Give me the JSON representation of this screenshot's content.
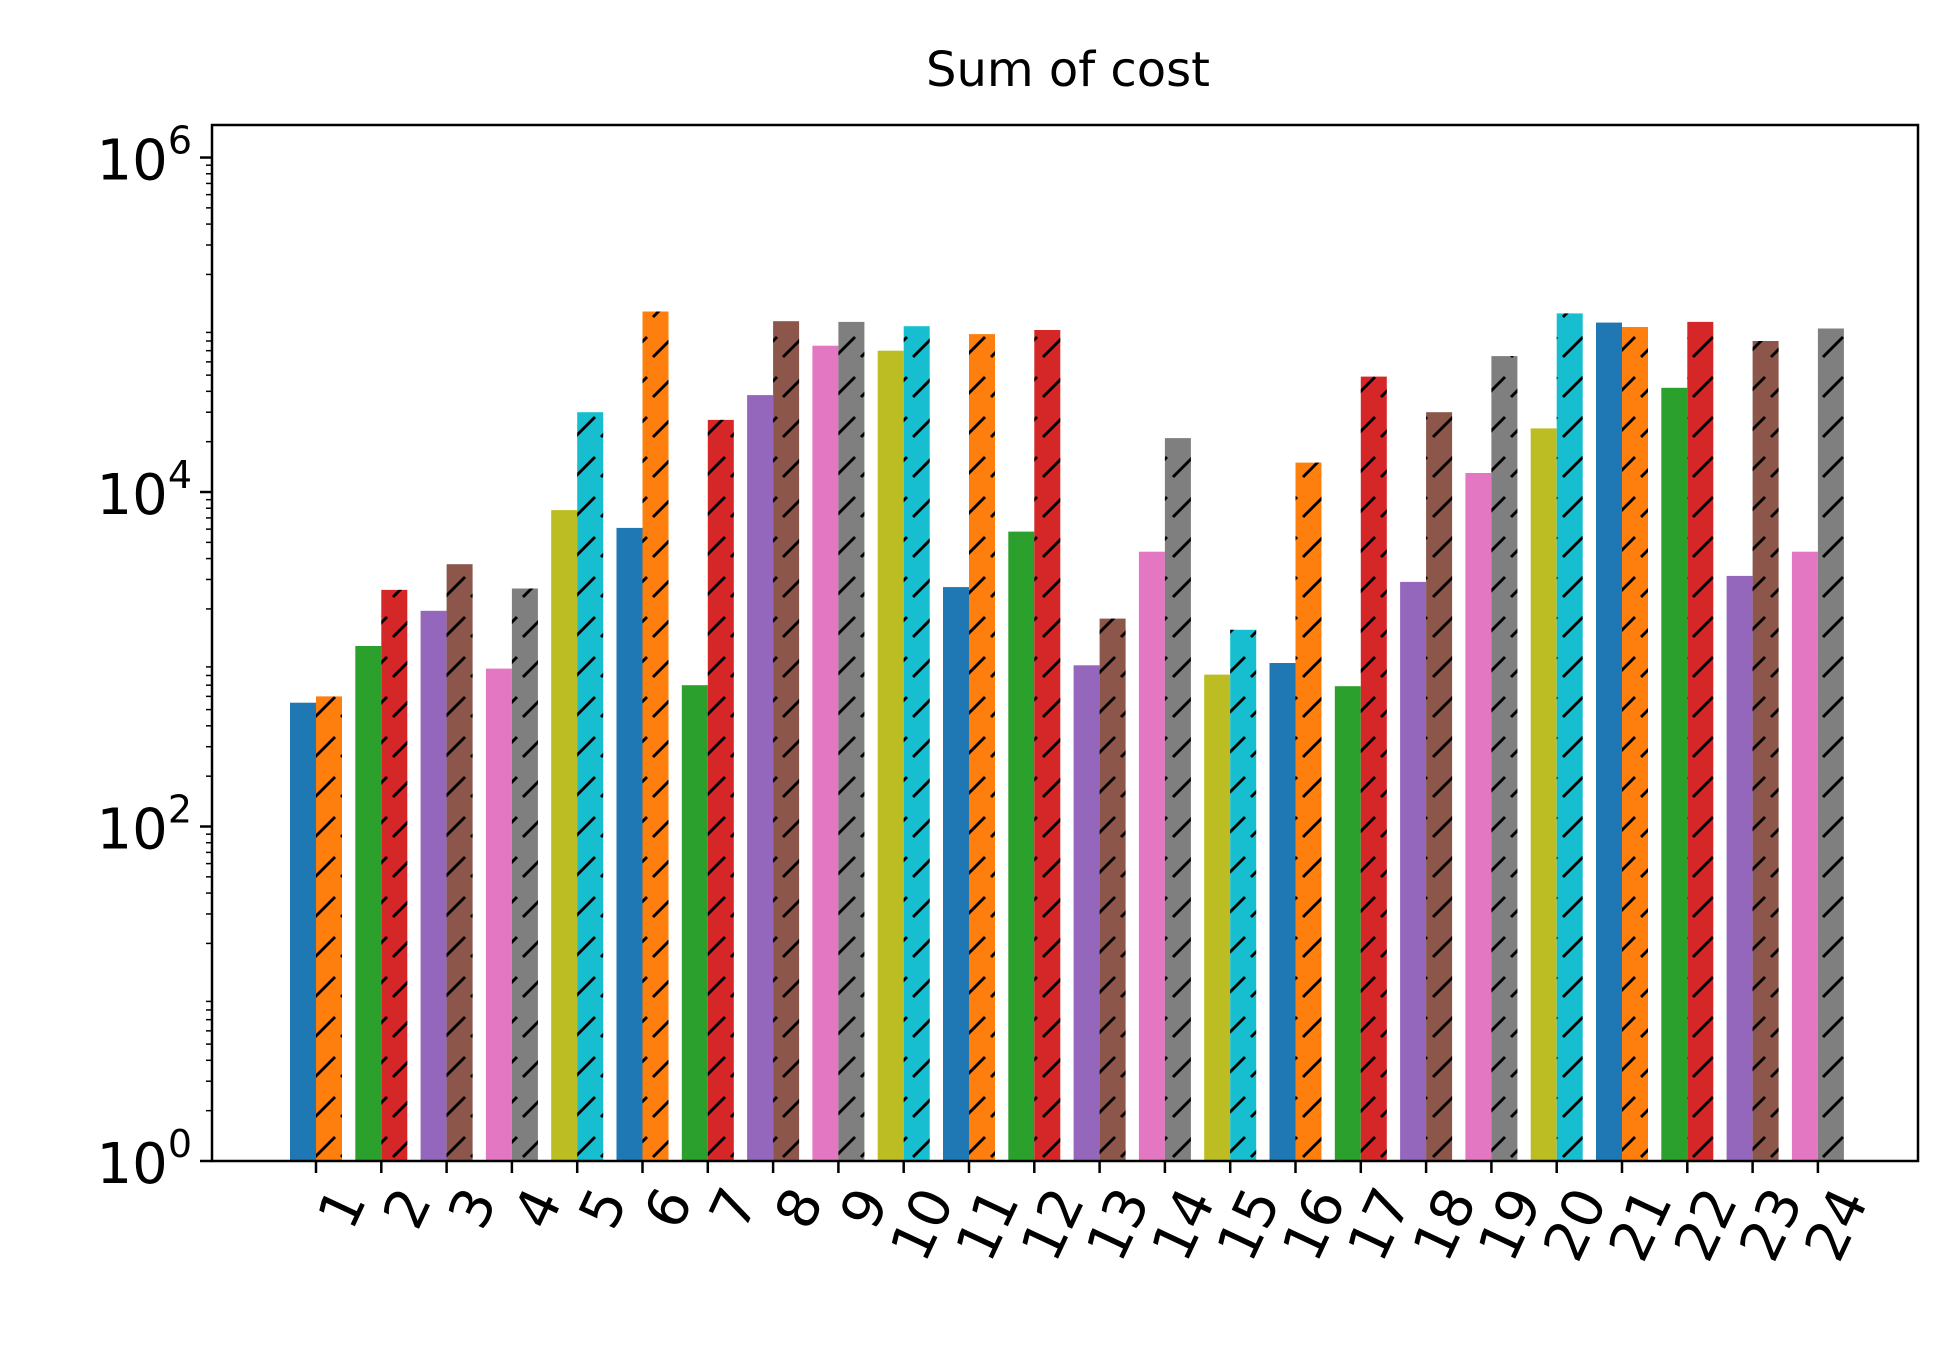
{
  "chart_data": {
    "type": "bar",
    "title": "Sum of cost",
    "xlabel": "",
    "ylabel": "",
    "y_scale": "log",
    "ylim": [
      1,
      1000000
    ],
    "y_ticks": [
      {
        "value": 1,
        "base": "10",
        "exp": "0"
      },
      {
        "value": 100,
        "base": "10",
        "exp": "2"
      },
      {
        "value": 10000,
        "base": "10",
        "exp": "4"
      },
      {
        "value": 1000000,
        "base": "10",
        "exp": "6"
      }
    ],
    "categories": [
      "1",
      "2",
      "3",
      "4",
      "5",
      "6",
      "7",
      "8",
      "9",
      "10",
      "11",
      "12",
      "13",
      "14",
      "15",
      "16",
      "17",
      "18",
      "19",
      "20",
      "21",
      "22",
      "23",
      "24"
    ],
    "grid": false,
    "legend": "none",
    "palette": [
      "#1f77b4",
      "#ff7f0e",
      "#2ca02c",
      "#d62728",
      "#9467bd",
      "#8c564b",
      "#e377c2",
      "#7f7f7f",
      "#bcbd22",
      "#17becf"
    ],
    "bars": [
      {
        "category": "1",
        "value": 550,
        "hatched": false,
        "color": "#1f77b4"
      },
      {
        "category": "1",
        "value": 600,
        "hatched": true,
        "color": "#ff7f0e"
      },
      {
        "category": "2",
        "value": 1200,
        "hatched": false,
        "color": "#2ca02c"
      },
      {
        "category": "2",
        "value": 2600,
        "hatched": true,
        "color": "#d62728"
      },
      {
        "category": "3",
        "value": 1950,
        "hatched": false,
        "color": "#9467bd"
      },
      {
        "category": "3",
        "value": 3700,
        "hatched": true,
        "color": "#8c564b"
      },
      {
        "category": "4",
        "value": 880,
        "hatched": false,
        "color": "#e377c2"
      },
      {
        "category": "4",
        "value": 2650,
        "hatched": true,
        "color": "#7f7f7f"
      },
      {
        "category": "5",
        "value": 7800,
        "hatched": false,
        "color": "#bcbd22"
      },
      {
        "category": "5",
        "value": 30000,
        "hatched": true,
        "color": "#17becf"
      },
      {
        "category": "6",
        "value": 6100,
        "hatched": false,
        "color": "#1f77b4"
      },
      {
        "category": "6",
        "value": 120000,
        "hatched": true,
        "color": "#ff7f0e"
      },
      {
        "category": "7",
        "value": 700,
        "hatched": false,
        "color": "#2ca02c"
      },
      {
        "category": "7",
        "value": 27000,
        "hatched": true,
        "color": "#d62728"
      },
      {
        "category": "8",
        "value": 38000,
        "hatched": false,
        "color": "#9467bd"
      },
      {
        "category": "8",
        "value": 105000,
        "hatched": true,
        "color": "#8c564b"
      },
      {
        "category": "9",
        "value": 75000,
        "hatched": false,
        "color": "#e377c2"
      },
      {
        "category": "9",
        "value": 104000,
        "hatched": true,
        "color": "#7f7f7f"
      },
      {
        "category": "10",
        "value": 70000,
        "hatched": false,
        "color": "#bcbd22"
      },
      {
        "category": "10",
        "value": 98000,
        "hatched": true,
        "color": "#17becf"
      },
      {
        "category": "11",
        "value": 2700,
        "hatched": false,
        "color": "#1f77b4"
      },
      {
        "category": "11",
        "value": 88000,
        "hatched": true,
        "color": "#ff7f0e"
      },
      {
        "category": "12",
        "value": 5800,
        "hatched": false,
        "color": "#2ca02c"
      },
      {
        "category": "12",
        "value": 93000,
        "hatched": true,
        "color": "#d62728"
      },
      {
        "category": "13",
        "value": 920,
        "hatched": false,
        "color": "#9467bd"
      },
      {
        "category": "13",
        "value": 1750,
        "hatched": true,
        "color": "#8c564b"
      },
      {
        "category": "14",
        "value": 4400,
        "hatched": false,
        "color": "#e377c2"
      },
      {
        "category": "14",
        "value": 21000,
        "hatched": true,
        "color": "#7f7f7f"
      },
      {
        "category": "15",
        "value": 810,
        "hatched": false,
        "color": "#bcbd22"
      },
      {
        "category": "15",
        "value": 1500,
        "hatched": true,
        "color": "#17becf"
      },
      {
        "category": "16",
        "value": 950,
        "hatched": false,
        "color": "#1f77b4"
      },
      {
        "category": "16",
        "value": 15000,
        "hatched": true,
        "color": "#ff7f0e"
      },
      {
        "category": "17",
        "value": 690,
        "hatched": false,
        "color": "#2ca02c"
      },
      {
        "category": "17",
        "value": 49000,
        "hatched": true,
        "color": "#d62728"
      },
      {
        "category": "18",
        "value": 2900,
        "hatched": false,
        "color": "#9467bd"
      },
      {
        "category": "18",
        "value": 30000,
        "hatched": true,
        "color": "#8c564b"
      },
      {
        "category": "19",
        "value": 13000,
        "hatched": false,
        "color": "#e377c2"
      },
      {
        "category": "19",
        "value": 65000,
        "hatched": true,
        "color": "#7f7f7f"
      },
      {
        "category": "20",
        "value": 24000,
        "hatched": false,
        "color": "#bcbd22"
      },
      {
        "category": "20",
        "value": 117000,
        "hatched": true,
        "color": "#17becf"
      },
      {
        "category": "21",
        "value": 103000,
        "hatched": false,
        "color": "#1f77b4"
      },
      {
        "category": "21",
        "value": 97000,
        "hatched": true,
        "color": "#ff7f0e"
      },
      {
        "category": "22",
        "value": 42000,
        "hatched": false,
        "color": "#2ca02c"
      },
      {
        "category": "22",
        "value": 104000,
        "hatched": true,
        "color": "#d62728"
      },
      {
        "category": "23",
        "value": 3150,
        "hatched": false,
        "color": "#9467bd"
      },
      {
        "category": "23",
        "value": 80000,
        "hatched": true,
        "color": "#8c564b"
      },
      {
        "category": "24",
        "value": 4400,
        "hatched": false,
        "color": "#e377c2"
      },
      {
        "category": "24",
        "value": 95000,
        "hatched": true,
        "color": "#7f7f7f"
      }
    ]
  }
}
